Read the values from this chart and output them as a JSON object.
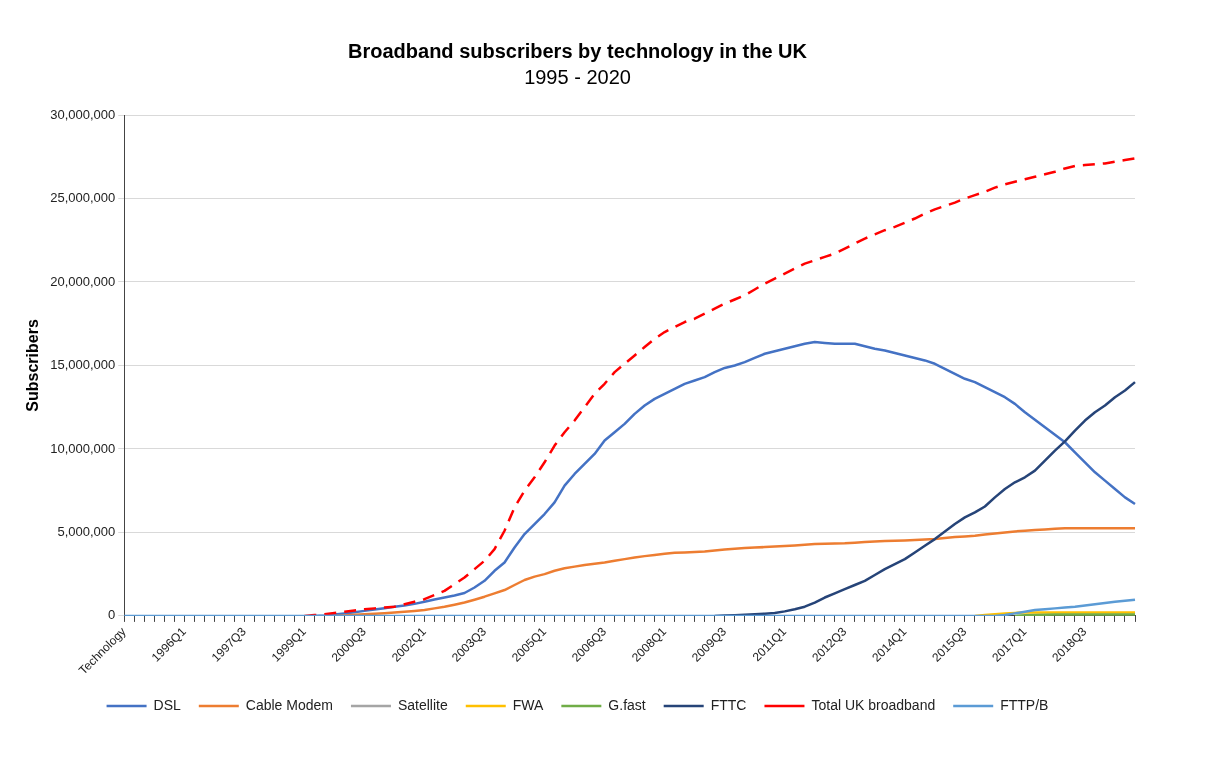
{
  "chart_data": {
    "type": "line",
    "title": "Broadband subscribers by technology in the UK",
    "subtitle": "1995 - 2020",
    "ylabel": "Subscribers",
    "categories": [
      "Technology",
      null,
      null,
      null,
      null,
      null,
      "1996Q1",
      null,
      null,
      null,
      null,
      null,
      "1997Q3",
      null,
      null,
      null,
      null,
      null,
      "1999Q1",
      null,
      null,
      null,
      null,
      null,
      "2000Q3",
      null,
      null,
      null,
      null,
      null,
      "2002Q1",
      null,
      null,
      null,
      null,
      null,
      "2003Q3",
      null,
      null,
      null,
      null,
      null,
      "2005Q1",
      null,
      null,
      null,
      null,
      null,
      "2006Q3",
      null,
      null,
      null,
      null,
      null,
      "2008Q1",
      null,
      null,
      null,
      null,
      null,
      "2009Q3",
      null,
      null,
      null,
      null,
      null,
      "2011Q1",
      null,
      null,
      null,
      null,
      null,
      "2012Q3",
      null,
      null,
      null,
      null,
      null,
      "2014Q1",
      null,
      null,
      null,
      null,
      null,
      "2015Q3",
      null,
      null,
      null,
      null,
      null,
      "2017Q1",
      null,
      null,
      null,
      null,
      null,
      "2018Q3",
      null,
      null,
      null,
      null,
      null
    ],
    "ylim": [
      0,
      30000000
    ],
    "yticks": [
      0,
      {
        "value": 5000000,
        "label": "5,000,000"
      },
      {
        "value": 10000000,
        "label": "10,000,000"
      },
      {
        "value": 15000000,
        "label": "15,000,000"
      },
      {
        "value": 20000000,
        "label": "20,000,000"
      },
      {
        "value": 25000000,
        "label": "25,000,000"
      },
      {
        "value": 30000000,
        "label": "30,000,000"
      }
    ],
    "grid": "y",
    "legend": "bottom",
    "marker": "none",
    "series": [
      {
        "name": "DSL",
        "color": "#4472c4",
        "line_style": "solid",
        "values": [
          null,
          null,
          null,
          null,
          null,
          null,
          null,
          null,
          null,
          null,
          null,
          null,
          null,
          null,
          null,
          null,
          null,
          null,
          null,
          0,
          30000,
          80000,
          150000,
          220000,
          300000,
          380000,
          460000,
          550000,
          620000,
          720000,
          850000,
          980000,
          1100000,
          1220000,
          1370000,
          1700000,
          2100000,
          2700000,
          3200000,
          4100000,
          4900000,
          5500000,
          6100000,
          6800000,
          7800000,
          8500000,
          9100000,
          9700000,
          10500000,
          11000000,
          11500000,
          12100000,
          12600000,
          13000000,
          13300000,
          13600000,
          13900000,
          14100000,
          14300000,
          14600000,
          14850000,
          15000000,
          15200000,
          15450000,
          15700000,
          15850000,
          16000000,
          16150000,
          16300000,
          16400000,
          16350000,
          16300000,
          16300000,
          16300000,
          16150000,
          16000000,
          15900000,
          15750000,
          15600000,
          15450000,
          15300000,
          15100000,
          14800000,
          14500000,
          14200000,
          14000000,
          13700000,
          13400000,
          13100000,
          12700000,
          12200000,
          11750000,
          11300000,
          10850000,
          10400000,
          9800000,
          9200000,
          8600000,
          8100000,
          7600000,
          7100000,
          6700000
        ]
      },
      {
        "name": "Cable Modem",
        "color": "#ed7d31",
        "line_style": "solid",
        "values": [
          null,
          null,
          null,
          null,
          null,
          null,
          null,
          null,
          null,
          null,
          null,
          null,
          null,
          null,
          null,
          null,
          null,
          null,
          null,
          null,
          null,
          0,
          30000,
          70000,
          100000,
          130000,
          160000,
          200000,
          250000,
          300000,
          350000,
          450000,
          550000,
          670000,
          800000,
          970000,
          1150000,
          1350000,
          1550000,
          1850000,
          2150000,
          2350000,
          2500000,
          2700000,
          2850000,
          2950000,
          3050000,
          3120000,
          3200000,
          3300000,
          3400000,
          3500000,
          3580000,
          3650000,
          3720000,
          3780000,
          3800000,
          3820000,
          3850000,
          3920000,
          3980000,
          4020000,
          4060000,
          4100000,
          4120000,
          4150000,
          4180000,
          4220000,
          4260000,
          4300000,
          4320000,
          4340000,
          4350000,
          4380000,
          4420000,
          4450000,
          4480000,
          4500000,
          4520000,
          4550000,
          4580000,
          4600000,
          4660000,
          4720000,
          4760000,
          4800000,
          4870000,
          4940000,
          5000000,
          5060000,
          5100000,
          5140000,
          5180000,
          5220000,
          5250000,
          5250000,
          5250000,
          5250000,
          5250000,
          5250000,
          5250000,
          5250000
        ]
      },
      {
        "name": "Satellite",
        "color": "#a5a5a5",
        "line_style": "solid",
        "values": [
          null,
          null,
          null,
          null,
          null,
          null,
          null,
          null,
          null,
          null,
          null,
          null,
          null,
          null,
          null,
          null,
          null,
          null,
          null,
          null,
          null,
          null,
          null,
          null,
          null,
          null,
          null,
          null,
          null,
          null,
          null,
          null,
          null,
          null,
          null,
          null,
          null,
          null,
          null,
          null,
          null,
          null,
          null,
          null,
          null,
          null,
          null,
          null,
          null,
          null,
          null,
          null,
          null,
          null,
          null,
          null,
          null,
          null,
          null,
          null,
          null,
          null,
          null,
          null,
          null,
          null,
          null,
          null,
          null,
          null,
          null,
          null,
          null,
          null,
          null,
          null,
          null,
          null,
          null,
          null,
          null,
          null,
          null,
          null,
          null,
          null,
          null,
          null,
          null,
          null,
          null,
          null,
          null,
          null,
          null,
          null,
          null,
          null,
          null,
          null,
          null,
          null
        ]
      },
      {
        "name": "FWA",
        "color": "#ffc000",
        "line_style": "solid",
        "values": [
          null,
          null,
          null,
          null,
          null,
          null,
          null,
          null,
          null,
          null,
          null,
          null,
          null,
          null,
          null,
          null,
          null,
          null,
          null,
          null,
          null,
          null,
          null,
          null,
          null,
          null,
          null,
          null,
          null,
          null,
          null,
          null,
          null,
          null,
          null,
          null,
          null,
          null,
          null,
          null,
          null,
          null,
          null,
          null,
          null,
          null,
          null,
          null,
          null,
          null,
          null,
          null,
          null,
          null,
          null,
          null,
          null,
          null,
          null,
          null,
          null,
          null,
          null,
          null,
          null,
          null,
          null,
          null,
          null,
          null,
          null,
          null,
          null,
          null,
          null,
          null,
          null,
          null,
          null,
          null,
          null,
          null,
          null,
          null,
          null,
          0,
          50000,
          100000,
          150000,
          180000,
          200000,
          200000,
          200000,
          200000,
          200000,
          200000,
          200000,
          200000,
          200000,
          200000,
          200000,
          200000
        ]
      },
      {
        "name": "G.fast",
        "color": "#70ad47",
        "line_style": "solid",
        "values": [
          null,
          null,
          null,
          null,
          null,
          null,
          null,
          null,
          null,
          null,
          null,
          null,
          null,
          null,
          null,
          null,
          null,
          null,
          null,
          null,
          null,
          null,
          null,
          null,
          null,
          null,
          null,
          null,
          null,
          null,
          null,
          null,
          null,
          null,
          null,
          null,
          null,
          null,
          null,
          null,
          null,
          null,
          null,
          null,
          null,
          null,
          null,
          null,
          null,
          null,
          null,
          null,
          null,
          null,
          null,
          null,
          null,
          null,
          null,
          null,
          null,
          null,
          null,
          null,
          null,
          null,
          null,
          null,
          null,
          null,
          null,
          null,
          null,
          null,
          null,
          null,
          null,
          null,
          null,
          null,
          null,
          null,
          null,
          null,
          null,
          null,
          null,
          null,
          null,
          0,
          40000,
          60000,
          70000,
          80000,
          80000,
          80000,
          80000,
          80000,
          80000,
          80000,
          80000,
          80000
        ]
      },
      {
        "name": "FTTC",
        "color": "#264478",
        "line_style": "solid",
        "values": [
          null,
          null,
          null,
          null,
          null,
          null,
          null,
          null,
          null,
          null,
          null,
          null,
          null,
          null,
          null,
          null,
          null,
          null,
          null,
          null,
          null,
          null,
          null,
          null,
          null,
          null,
          null,
          null,
          null,
          null,
          null,
          null,
          null,
          null,
          null,
          null,
          null,
          null,
          null,
          null,
          null,
          null,
          null,
          null,
          null,
          null,
          null,
          null,
          null,
          null,
          null,
          null,
          null,
          null,
          null,
          null,
          null,
          null,
          null,
          0,
          20000,
          40000,
          70000,
          100000,
          130000,
          170000,
          270000,
          400000,
          550000,
          800000,
          1100000,
          1350000,
          1600000,
          1850000,
          2100000,
          2450000,
          2800000,
          3100000,
          3400000,
          3800000,
          4200000,
          4600000,
          5050000,
          5500000,
          5900000,
          6200000,
          6550000,
          7100000,
          7600000,
          8000000,
          8300000,
          8700000,
          9300000,
          9900000,
          10450000,
          11100000,
          11700000,
          12200000,
          12600000,
          13100000,
          13500000,
          14000000
        ]
      },
      {
        "name": "Total UK broadband",
        "color": "#ff0000",
        "line_style": "dashed",
        "values": [
          null,
          null,
          null,
          null,
          null,
          null,
          null,
          null,
          null,
          null,
          null,
          null,
          null,
          null,
          null,
          null,
          null,
          null,
          0,
          50000,
          100000,
          170000,
          250000,
          320000,
          400000,
          450000,
          500000,
          550000,
          700000,
          850000,
          1000000,
          1250000,
          1500000,
          1900000,
          2300000,
          2800000,
          3300000,
          4000000,
          5100000,
          6500000,
          7500000,
          8300000,
          9200000,
          10200000,
          11000000,
          11700000,
          12500000,
          13300000,
          13900000,
          14600000,
          15100000,
          15600000,
          16100000,
          16600000,
          17000000,
          17300000,
          17600000,
          17800000,
          18100000,
          18400000,
          18700000,
          18950000,
          19200000,
          19550000,
          19900000,
          20200000,
          20500000,
          20800000,
          21100000,
          21300000,
          21500000,
          21700000,
          22000000,
          22300000,
          22600000,
          22850000,
          23100000,
          23300000,
          23550000,
          23800000,
          24100000,
          24350000,
          24550000,
          24750000,
          25000000,
          25200000,
          25400000,
          25650000,
          25850000,
          26000000,
          26150000,
          26300000,
          26450000,
          26600000,
          26800000,
          26950000,
          27000000,
          27050000,
          27100000,
          27200000,
          27300000,
          27400000
        ]
      },
      {
        "name": "FTTP/B",
        "color": "#5b9bd5",
        "line_style": "solid",
        "values": [
          0,
          0,
          0,
          0,
          0,
          0,
          0,
          0,
          0,
          0,
          0,
          0,
          0,
          0,
          0,
          0,
          0,
          0,
          0,
          0,
          0,
          0,
          0,
          0,
          0,
          0,
          0,
          0,
          0,
          0,
          0,
          0,
          0,
          0,
          0,
          0,
          0,
          0,
          0,
          0,
          0,
          0,
          0,
          0,
          0,
          0,
          0,
          0,
          0,
          0,
          0,
          0,
          0,
          0,
          0,
          0,
          0,
          0,
          0,
          0,
          0,
          0,
          0,
          0,
          0,
          0,
          0,
          0,
          0,
          0,
          0,
          0,
          0,
          0,
          0,
          0,
          0,
          0,
          0,
          0,
          0,
          0,
          0,
          0,
          0,
          0,
          0,
          0,
          50000,
          150000,
          250000,
          350000,
          400000,
          450000,
          500000,
          550000,
          620000,
          700000,
          770000,
          840000,
          900000,
          970000
        ]
      }
    ]
  }
}
